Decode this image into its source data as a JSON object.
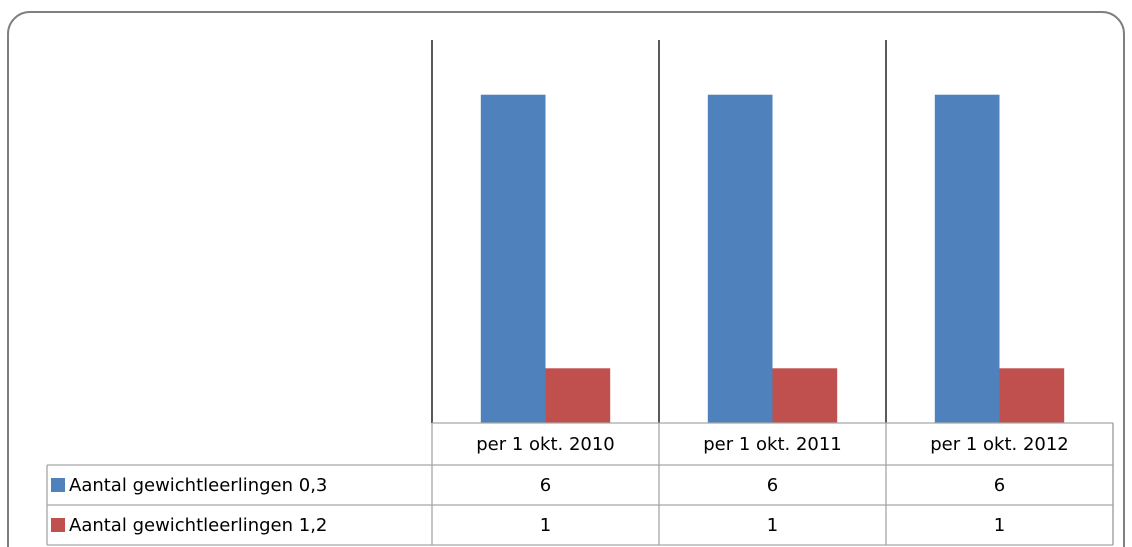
{
  "chart_data": {
    "type": "bar",
    "categories": [
      "per 1 okt. 2010",
      "per 1 okt. 2011",
      "per 1 okt. 2012"
    ],
    "series": [
      {
        "name": "Aantal gewichtleerlingen 0,3",
        "color": "#4f81bd",
        "values": [
          6,
          6,
          6
        ]
      },
      {
        "name": "Aantal gewichtleerlingen 1,2",
        "color": "#c0504d",
        "values": [
          1,
          1,
          1
        ]
      }
    ],
    "ylim": [
      0,
      7
    ]
  }
}
